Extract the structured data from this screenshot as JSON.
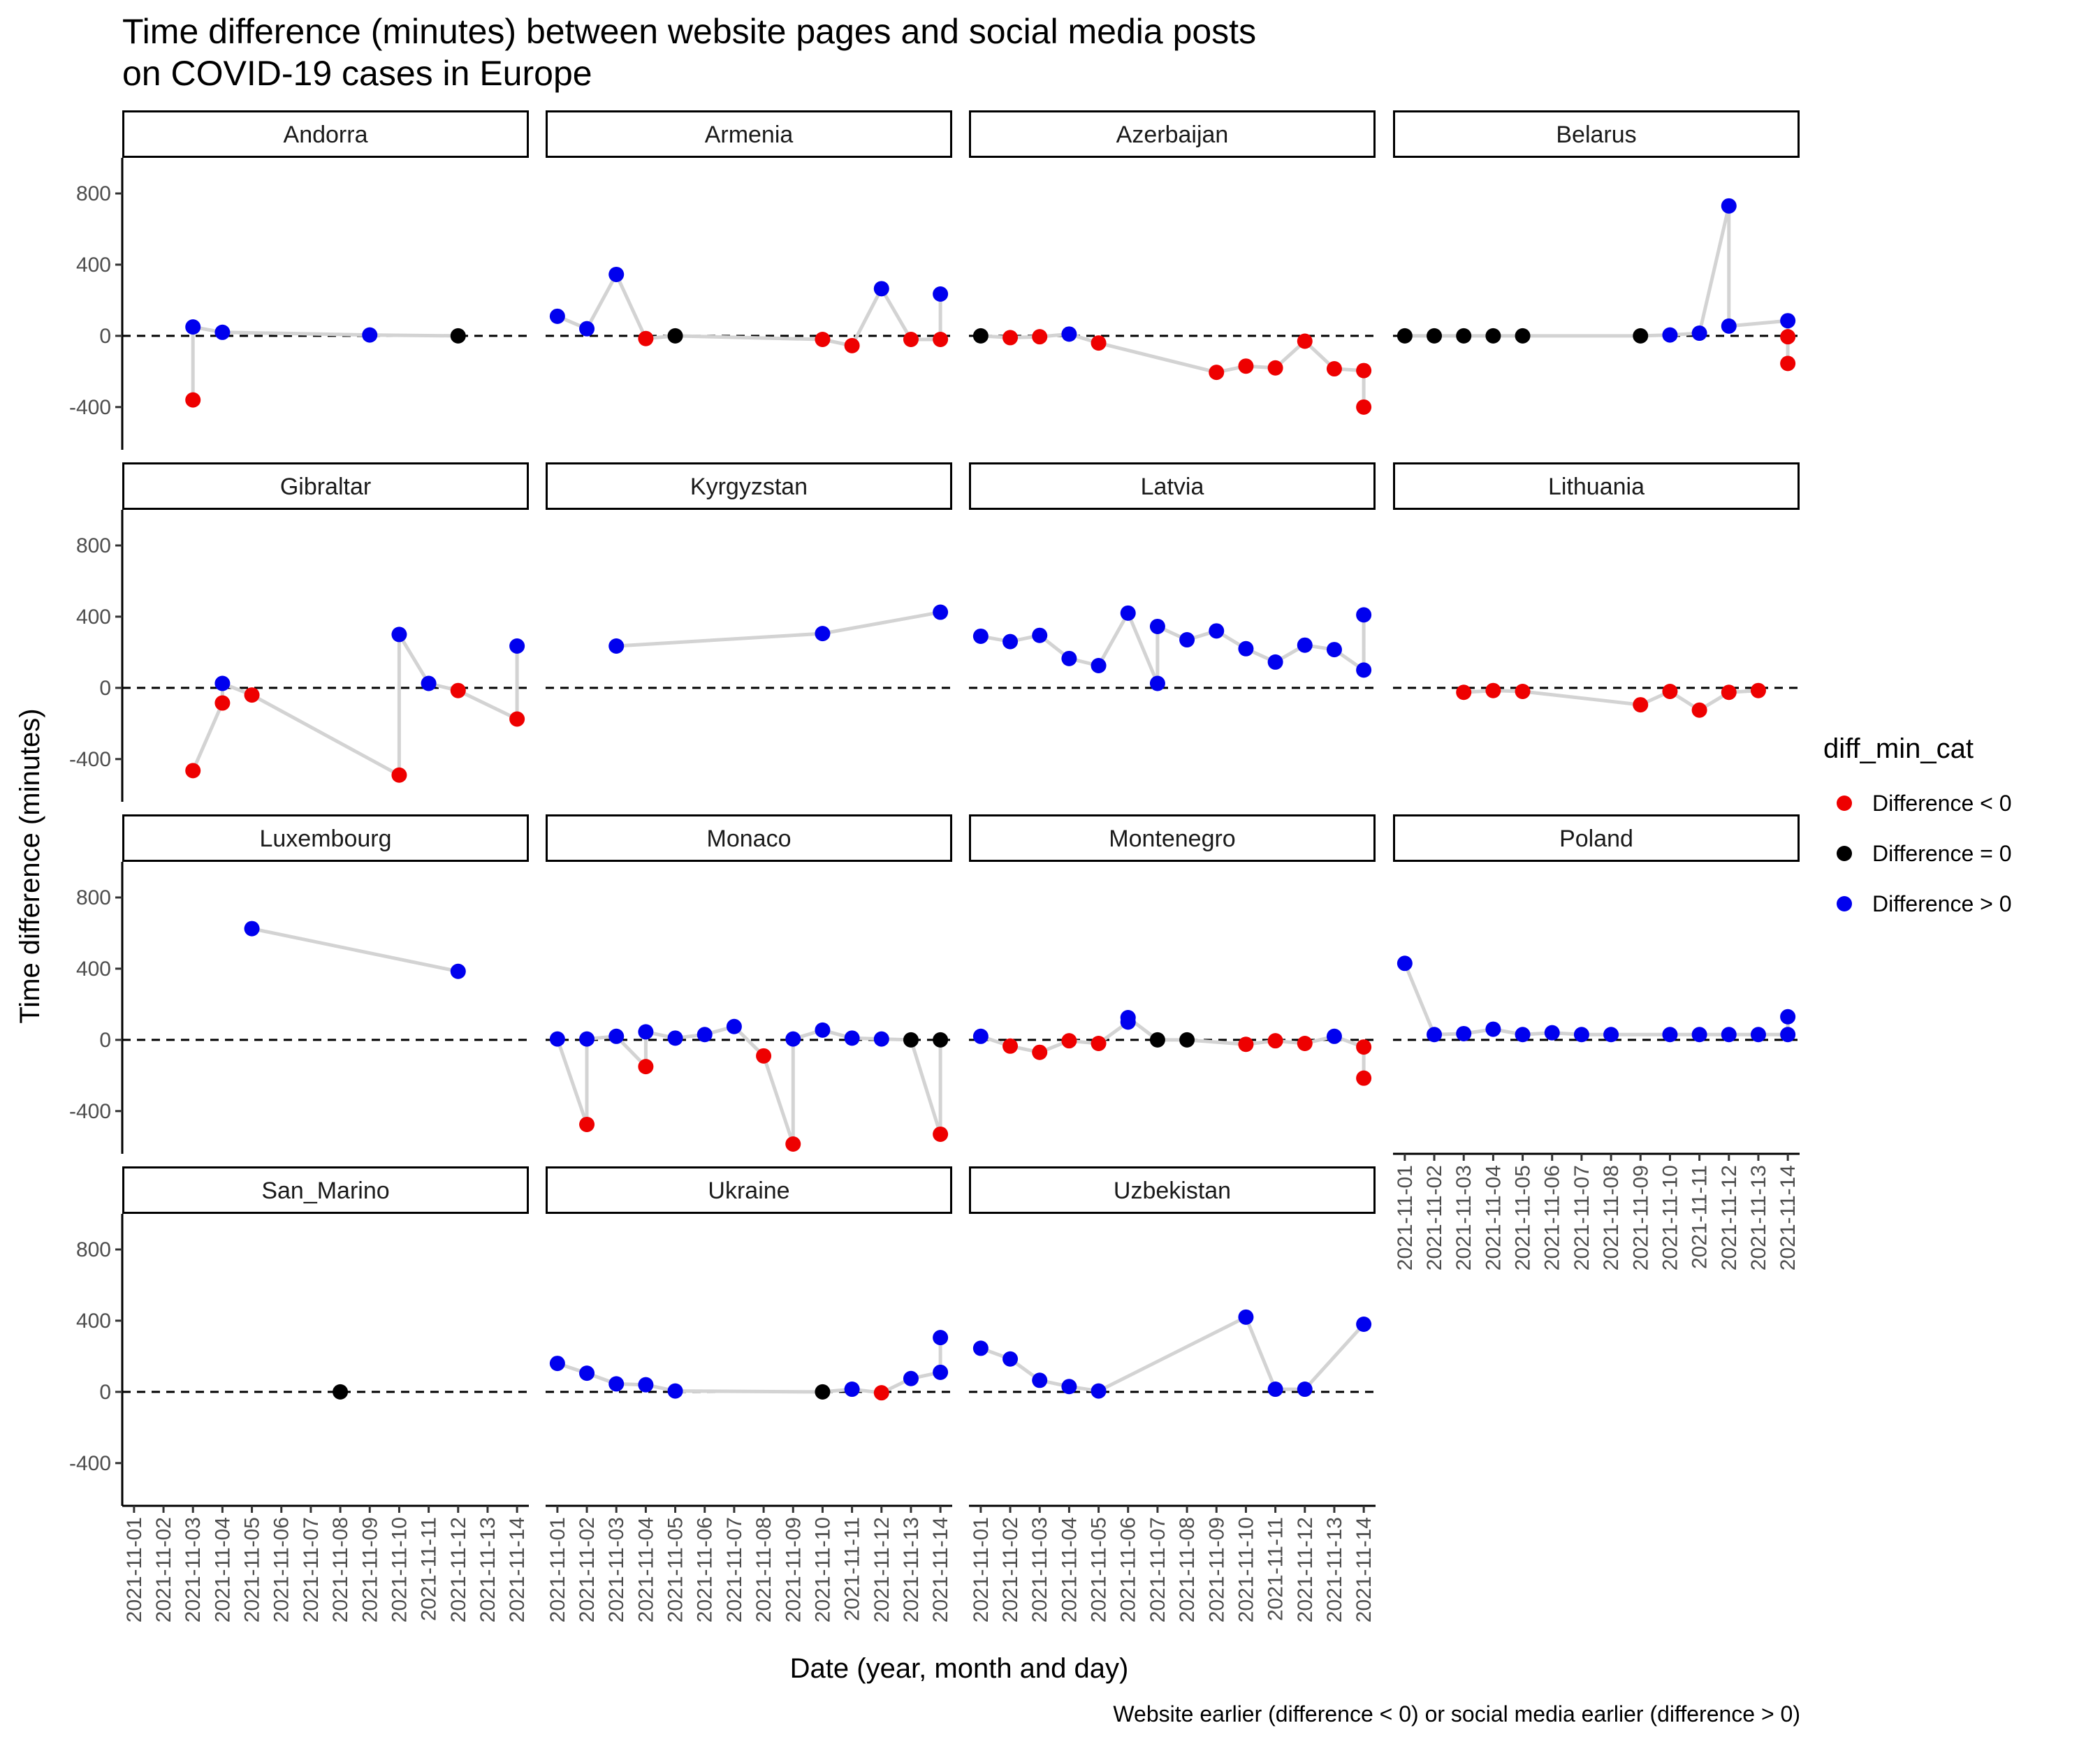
{
  "chart_data": {
    "type": "scatter",
    "title": "Time difference (minutes) between website pages and social media posts\non COVID-19 cases in Europe",
    "xlabel": "Date (year, month and day)",
    "ylabel": "Time difference (minutes)",
    "caption": "Website earlier (difference < 0) or social media earlier (difference > 0)",
    "x_categories": [
      "2021-11-01",
      "2021-11-02",
      "2021-11-03",
      "2021-11-04",
      "2021-11-05",
      "2021-11-06",
      "2021-11-07",
      "2021-11-08",
      "2021-11-09",
      "2021-11-10",
      "2021-11-11",
      "2021-11-12",
      "2021-11-13",
      "2021-11-14"
    ],
    "y_ticks": [
      800,
      400,
      0,
      -400
    ],
    "ylim": [
      -640,
      1000
    ],
    "legend": {
      "title": "diff_min_cat",
      "position": "right",
      "entries": [
        {
          "label": "Difference < 0",
          "color": "#ee0000"
        },
        {
          "label": "Difference = 0",
          "color": "#000000"
        },
        {
          "label": "Difference > 0",
          "color": "#0000ee"
        }
      ]
    },
    "colors": {
      "neg": "#ee0000",
      "zero": "#000000",
      "pos": "#0000ee",
      "line": "#d3d3d3"
    },
    "panels": [
      {
        "name": "Andorra",
        "points": [
          [
            "2021-11-03",
            -360
          ],
          [
            "2021-11-03",
            50
          ],
          [
            "2021-11-04",
            20
          ],
          [
            "2021-11-09",
            5
          ],
          [
            "2021-11-12",
            0
          ]
        ]
      },
      {
        "name": "Armenia",
        "points": [
          [
            "2021-11-01",
            110
          ],
          [
            "2021-11-02",
            40
          ],
          [
            "2021-11-03",
            345
          ],
          [
            "2021-11-04",
            -15
          ],
          [
            "2021-11-05",
            0
          ],
          [
            "2021-11-10",
            -20
          ],
          [
            "2021-11-11",
            -55
          ],
          [
            "2021-11-12",
            265
          ],
          [
            "2021-11-13",
            -20
          ],
          [
            "2021-11-14",
            -20
          ],
          [
            "2021-11-14",
            235
          ]
        ]
      },
      {
        "name": "Azerbaijan",
        "points": [
          [
            "2021-11-01",
            0
          ],
          [
            "2021-11-02",
            -10
          ],
          [
            "2021-11-03",
            -5
          ],
          [
            "2021-11-04",
            10
          ],
          [
            "2021-11-05",
            -40
          ],
          [
            "2021-11-09",
            -205
          ],
          [
            "2021-11-10",
            -170
          ],
          [
            "2021-11-11",
            -180
          ],
          [
            "2021-11-12",
            -30
          ],
          [
            "2021-11-13",
            -185
          ],
          [
            "2021-11-14",
            -195
          ],
          [
            "2021-11-14",
            -400
          ]
        ]
      },
      {
        "name": "Belarus",
        "points": [
          [
            "2021-11-01",
            0
          ],
          [
            "2021-11-02",
            0
          ],
          [
            "2021-11-03",
            0
          ],
          [
            "2021-11-04",
            0
          ],
          [
            "2021-11-05",
            0
          ],
          [
            "2021-11-09",
            0
          ],
          [
            "2021-11-10",
            5
          ],
          [
            "2021-11-11",
            15
          ],
          [
            "2021-11-12",
            730
          ],
          [
            "2021-11-12",
            55
          ],
          [
            "2021-11-14",
            85
          ],
          [
            "2021-11-14",
            -5
          ],
          [
            "2021-11-14",
            -155
          ]
        ]
      },
      {
        "name": "Gibraltar",
        "points": [
          [
            "2021-11-03",
            -465
          ],
          [
            "2021-11-04",
            -85
          ],
          [
            "2021-11-04",
            25
          ],
          [
            "2021-11-05",
            -40
          ],
          [
            "2021-11-10",
            -490
          ],
          [
            "2021-11-10",
            300
          ],
          [
            "2021-11-11",
            25
          ],
          [
            "2021-11-12",
            -15
          ],
          [
            "2021-11-14",
            -175
          ],
          [
            "2021-11-14",
            235
          ]
        ]
      },
      {
        "name": "Kyrgyzstan",
        "points": [
          [
            "2021-11-03",
            235
          ],
          [
            "2021-11-10",
            305
          ],
          [
            "2021-11-14",
            425
          ]
        ]
      },
      {
        "name": "Latvia",
        "points": [
          [
            "2021-11-01",
            290
          ],
          [
            "2021-11-02",
            260
          ],
          [
            "2021-11-03",
            295
          ],
          [
            "2021-11-04",
            165
          ],
          [
            "2021-11-05",
            125
          ],
          [
            "2021-11-06",
            420
          ],
          [
            "2021-11-07",
            25
          ],
          [
            "2021-11-07",
            345
          ],
          [
            "2021-11-08",
            270
          ],
          [
            "2021-11-09",
            320
          ],
          [
            "2021-11-10",
            220
          ],
          [
            "2021-11-11",
            145
          ],
          [
            "2021-11-12",
            240
          ],
          [
            "2021-11-13",
            215
          ],
          [
            "2021-11-14",
            100
          ],
          [
            "2021-11-14",
            410
          ]
        ]
      },
      {
        "name": "Lithuania",
        "points": [
          [
            "2021-11-03",
            -25
          ],
          [
            "2021-11-04",
            -15
          ],
          [
            "2021-11-05",
            -20
          ],
          [
            "2021-11-09",
            -95
          ],
          [
            "2021-11-10",
            -20
          ],
          [
            "2021-11-11",
            -125
          ],
          [
            "2021-11-12",
            -25
          ],
          [
            "2021-11-13",
            -15
          ]
        ]
      },
      {
        "name": "Luxembourg",
        "points": [
          [
            "2021-11-05",
            625
          ],
          [
            "2021-11-12",
            385
          ]
        ]
      },
      {
        "name": "Monaco",
        "points": [
          [
            "2021-11-01",
            5
          ],
          [
            "2021-11-02",
            -475
          ],
          [
            "2021-11-02",
            5
          ],
          [
            "2021-11-03",
            20
          ],
          [
            "2021-11-04",
            -150
          ],
          [
            "2021-11-04",
            45
          ],
          [
            "2021-11-05",
            10
          ],
          [
            "2021-11-06",
            30
          ],
          [
            "2021-11-07",
            75
          ],
          [
            "2021-11-08",
            -90
          ],
          [
            "2021-11-09",
            -585
          ],
          [
            "2021-11-09",
            5
          ],
          [
            "2021-11-10",
            55
          ],
          [
            "2021-11-11",
            10
          ],
          [
            "2021-11-12",
            5
          ],
          [
            "2021-11-13",
            0
          ],
          [
            "2021-11-14",
            -530
          ],
          [
            "2021-11-14",
            0
          ]
        ]
      },
      {
        "name": "Montenegro",
        "points": [
          [
            "2021-11-01",
            20
          ],
          [
            "2021-11-02",
            -35
          ],
          [
            "2021-11-03",
            -70
          ],
          [
            "2021-11-04",
            -5
          ],
          [
            "2021-11-05",
            -20
          ],
          [
            "2021-11-06",
            100
          ],
          [
            "2021-11-06",
            125
          ],
          [
            "2021-11-07",
            0
          ],
          [
            "2021-11-08",
            0
          ],
          [
            "2021-11-10",
            -25
          ],
          [
            "2021-11-11",
            -5
          ],
          [
            "2021-11-12",
            -20
          ],
          [
            "2021-11-13",
            20
          ],
          [
            "2021-11-14",
            -40
          ],
          [
            "2021-11-14",
            -215
          ]
        ]
      },
      {
        "name": "Poland",
        "points": [
          [
            "2021-11-01",
            430
          ],
          [
            "2021-11-02",
            30
          ],
          [
            "2021-11-03",
            35
          ],
          [
            "2021-11-04",
            60
          ],
          [
            "2021-11-05",
            30
          ],
          [
            "2021-11-06",
            40
          ],
          [
            "2021-11-07",
            30
          ],
          [
            "2021-11-08",
            30
          ],
          [
            "2021-11-10",
            30
          ],
          [
            "2021-11-11",
            30
          ],
          [
            "2021-11-12",
            30
          ],
          [
            "2021-11-13",
            30
          ],
          [
            "2021-11-14",
            30
          ],
          [
            "2021-11-14",
            130
          ]
        ]
      },
      {
        "name": "San_Marino",
        "points": [
          [
            "2021-11-08",
            0
          ]
        ]
      },
      {
        "name": "Ukraine",
        "points": [
          [
            "2021-11-01",
            160
          ],
          [
            "2021-11-02",
            105
          ],
          [
            "2021-11-03",
            45
          ],
          [
            "2021-11-04",
            40
          ],
          [
            "2021-11-05",
            5
          ],
          [
            "2021-11-10",
            0
          ],
          [
            "2021-11-11",
            15
          ],
          [
            "2021-11-12",
            -5
          ],
          [
            "2021-11-13",
            75
          ],
          [
            "2021-11-14",
            110
          ],
          [
            "2021-11-14",
            305
          ]
        ]
      },
      {
        "name": "Uzbekistan",
        "points": [
          [
            "2021-11-01",
            245
          ],
          [
            "2021-11-02",
            185
          ],
          [
            "2021-11-03",
            65
          ],
          [
            "2021-11-04",
            30
          ],
          [
            "2021-11-05",
            5
          ],
          [
            "2021-11-10",
            420
          ],
          [
            "2021-11-11",
            15
          ],
          [
            "2021-11-12",
            15
          ],
          [
            "2021-11-14",
            380
          ]
        ]
      }
    ]
  }
}
